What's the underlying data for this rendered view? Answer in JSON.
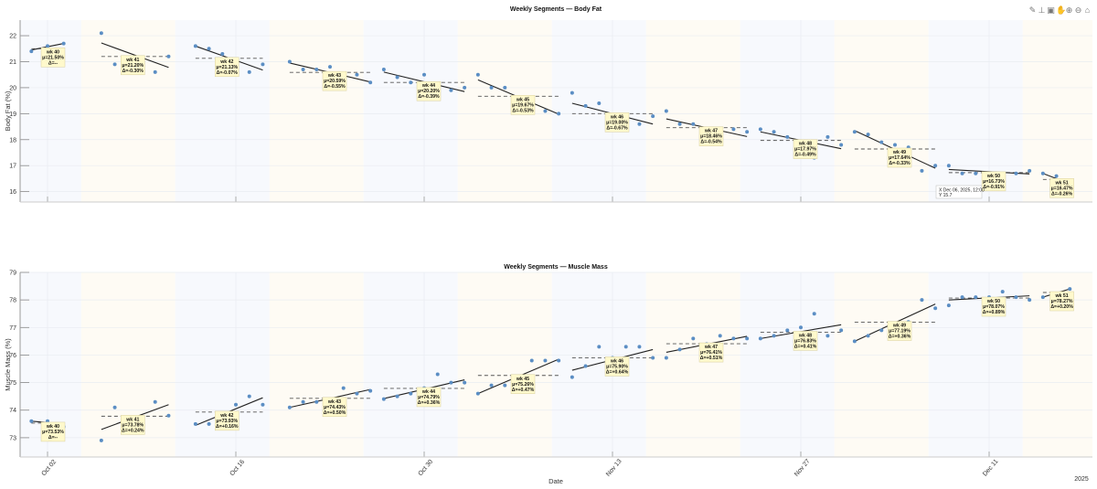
{
  "figure": {
    "toolbar": [
      {
        "name": "brush-icon",
        "glyph": "✎"
      },
      {
        "name": "datatip-icon",
        "glyph": "⊥"
      },
      {
        "name": "export-icon",
        "glyph": "▣"
      },
      {
        "name": "pan-icon",
        "glyph": "✋"
      },
      {
        "name": "zoom-in-icon",
        "glyph": "⊕"
      },
      {
        "name": "zoom-out-icon",
        "glyph": "⊖"
      },
      {
        "name": "home-icon",
        "glyph": "⌂"
      }
    ],
    "colors": {
      "points": "#5b8ec4",
      "fit": "#222222",
      "mean": "#555555",
      "label_bg": "#fff9cc",
      "band_a": "#f7f9fd",
      "band_b": "#fefbf4",
      "grid": "#e9ecf1"
    },
    "xlabel": "Date",
    "year_label": "2025",
    "xticks": [
      "Oct 02",
      "Oct 16",
      "Oct 30",
      "Nov 13",
      "Nov 27",
      "Dec 11"
    ],
    "datatip": {
      "x_line": "X Dec 06, 2025, 12:00",
      "y_line": "Y 15.7"
    }
  },
  "chart_data": [
    {
      "type": "scatter",
      "title": "Weekly Segments — Body Fat",
      "xlabel": "",
      "ylabel": "Body Fat (%)",
      "ylim": [
        15.6,
        22.6
      ],
      "yticks": [
        16,
        17,
        18,
        19,
        20,
        21,
        22
      ],
      "grid": true,
      "series_name": "Body Fat (%)",
      "weeks": [
        {
          "label": "wk 40",
          "mean": "μ=21.50%",
          "delta": "Δ=--",
          "mean_value": 21.5,
          "points": [
            21.4,
            21.6,
            21.7
          ],
          "fit": [
            21.45,
            21.7
          ]
        },
        {
          "label": "wk 41",
          "mean": "μ=21.20%",
          "delta": "Δ=-0.30%",
          "mean_value": 21.2,
          "points": [
            22.1,
            20.9,
            21.0,
            20.7,
            20.6,
            21.2
          ],
          "fit": [
            21.72,
            20.78
          ]
        },
        {
          "label": "wk 42",
          "mean": "μ=21.13%",
          "delta": "Δ=-0.07%",
          "mean_value": 21.13,
          "points": [
            21.6,
            21.5,
            21.3,
            21.0,
            20.6,
            20.9
          ],
          "fit": [
            21.6,
            20.68
          ]
        },
        {
          "label": "wk 43",
          "mean": "μ=20.59%",
          "delta": "Δ=-0.55%",
          "mean_value": 20.59,
          "points": [
            21.0,
            20.7,
            20.7,
            20.8,
            20.2,
            20.5,
            20.2
          ],
          "fit": [
            20.95,
            20.22
          ]
        },
        {
          "label": "wk 44",
          "mean": "μ=20.20%",
          "delta": "Δ=-0.39%",
          "mean_value": 20.2,
          "points": [
            20.7,
            20.4,
            20.2,
            20.5,
            19.7,
            19.9,
            20.0
          ],
          "fit": [
            20.6,
            19.85
          ]
        },
        {
          "label": "wk 45",
          "mean": "μ=19.67%",
          "delta": "Δ=-0.53%",
          "mean_value": 19.67,
          "points": [
            20.5,
            20.0,
            20.0,
            19.5,
            19.2,
            19.1,
            19.0
          ],
          "fit": [
            20.3,
            18.98
          ]
        },
        {
          "label": "wk 46",
          "mean": "μ=19.00%",
          "delta": "Δ=-0.67%",
          "mean_value": 19.0,
          "points": [
            19.8,
            19.3,
            19.4,
            18.6,
            18.6,
            18.6,
            18.9
          ],
          "fit": [
            19.4,
            18.6
          ]
        },
        {
          "label": "wk 47",
          "mean": "μ=18.46%",
          "delta": "Δ=-0.54%",
          "mean_value": 18.46,
          "points": [
            19.1,
            18.6,
            18.6,
            18.0,
            18.2,
            18.4,
            18.3
          ],
          "fit": [
            18.8,
            18.12
          ]
        },
        {
          "label": "wk 48",
          "mean": "μ=17.97%",
          "delta": "Δ=-0.49%",
          "mean_value": 17.97,
          "points": [
            18.4,
            18.3,
            18.1,
            17.9,
            17.3,
            18.1,
            17.8
          ],
          "fit": [
            18.3,
            17.65
          ]
        },
        {
          "label": "wk 49",
          "mean": "μ=17.64%",
          "delta": "Δ=-0.33%",
          "mean_value": 17.64,
          "points": [
            18.3,
            18.2,
            17.9,
            17.8,
            17.7,
            16.8,
            17.0
          ],
          "fit": [
            18.35,
            16.9
          ]
        },
        {
          "label": "wk 50",
          "mean": "μ=16.73%",
          "delta": "Δ=-0.91%",
          "mean_value": 16.73,
          "points": [
            17.0,
            16.7,
            16.7,
            16.6,
            16.5,
            16.7,
            16.8
          ],
          "fit": [
            16.85,
            16.68
          ]
        },
        {
          "label": "wk 51",
          "mean": "μ=16.47%",
          "delta": "Δ=-0.26%",
          "mean_value": 16.47,
          "points": [
            16.7,
            16.6,
            16.3
          ],
          "fit": [
            16.7,
            16.3
          ]
        }
      ]
    },
    {
      "type": "scatter",
      "title": "Weekly Segments — Muscle Mass",
      "xlabel": "Date",
      "ylabel": "Muscle Mass (%)",
      "ylim": [
        72.3,
        79.0
      ],
      "yticks": [
        73,
        74,
        75,
        76,
        77,
        78,
        79
      ],
      "grid": true,
      "series_name": "Muscle Mass (%)",
      "weeks": [
        {
          "label": "wk 40",
          "mean": "μ=73.53%",
          "delta": "Δ=--",
          "mean_value": 73.53,
          "points": [
            73.6,
            73.6,
            73.4
          ],
          "fit": [
            73.6,
            73.5
          ]
        },
        {
          "label": "wk 41",
          "mean": "μ=73.78%",
          "delta": "Δ=+0.24%",
          "mean_value": 73.78,
          "points": [
            72.9,
            74.1,
            73.7,
            73.6,
            74.3,
            73.8
          ],
          "fit": [
            73.3,
            74.2
          ]
        },
        {
          "label": "wk 42",
          "mean": "μ=73.93%",
          "delta": "Δ=+0.16%",
          "mean_value": 73.93,
          "points": [
            73.5,
            73.5,
            73.8,
            74.2,
            74.5,
            74.2
          ],
          "fit": [
            73.45,
            74.45
          ]
        },
        {
          "label": "wk 43",
          "mean": "μ=74.43%",
          "delta": "Δ=+0.50%",
          "mean_value": 74.43,
          "points": [
            74.1,
            74.3,
            74.3,
            74.4,
            74.8,
            74.6,
            74.7
          ],
          "fit": [
            74.1,
            74.75
          ]
        },
        {
          "label": "wk 44",
          "mean": "μ=74.79%",
          "delta": "Δ=+0.36%",
          "mean_value": 74.79,
          "points": [
            74.4,
            74.5,
            74.6,
            74.8,
            75.3,
            75.0,
            75.0
          ],
          "fit": [
            74.42,
            75.1
          ]
        },
        {
          "label": "wk 45",
          "mean": "μ=75.26%",
          "delta": "Δ=+0.47%",
          "mean_value": 75.26,
          "points": [
            74.6,
            74.9,
            74.9,
            75.2,
            75.8,
            75.8,
            75.8
          ],
          "fit": [
            74.6,
            75.85
          ]
        },
        {
          "label": "wk 46",
          "mean": "μ=75.90%",
          "delta": "Δ=+0.64%",
          "mean_value": 75.9,
          "points": [
            75.2,
            75.6,
            76.3,
            75.9,
            76.3,
            76.3,
            75.9
          ],
          "fit": [
            75.45,
            76.2
          ]
        },
        {
          "label": "wk 47",
          "mean": "μ=76.41%",
          "delta": "Δ=+0.51%",
          "mean_value": 76.41,
          "points": [
            75.9,
            76.2,
            76.6,
            76.4,
            76.7,
            76.6,
            76.6
          ],
          "fit": [
            76.1,
            76.68
          ]
        },
        {
          "label": "wk 48",
          "mean": "μ=76.83%",
          "delta": "Δ=+0.41%",
          "mean_value": 76.83,
          "points": [
            76.6,
            76.7,
            76.9,
            77.0,
            77.5,
            76.7,
            76.9
          ],
          "fit": [
            76.6,
            77.1
          ]
        },
        {
          "label": "wk 49",
          "mean": "μ=77.19%",
          "delta": "Δ=+0.36%",
          "mean_value": 77.19,
          "points": [
            76.5,
            76.7,
            76.9,
            77.1,
            77.2,
            78.0,
            77.7
          ],
          "fit": [
            76.5,
            77.85
          ]
        },
        {
          "label": "wk 50",
          "mean": "μ=78.07%",
          "delta": "Δ=+0.89%",
          "mean_value": 78.07,
          "points": [
            77.8,
            78.1,
            78.1,
            78.1,
            78.3,
            78.1,
            78.0
          ],
          "fit": [
            78.0,
            78.15
          ]
        },
        {
          "label": "wk 51",
          "mean": "μ=78.27%",
          "delta": "Δ=+0.20%",
          "mean_value": 78.27,
          "points": [
            78.1,
            78.2,
            78.4
          ],
          "fit": [
            78.1,
            78.4
          ]
        }
      ]
    }
  ]
}
